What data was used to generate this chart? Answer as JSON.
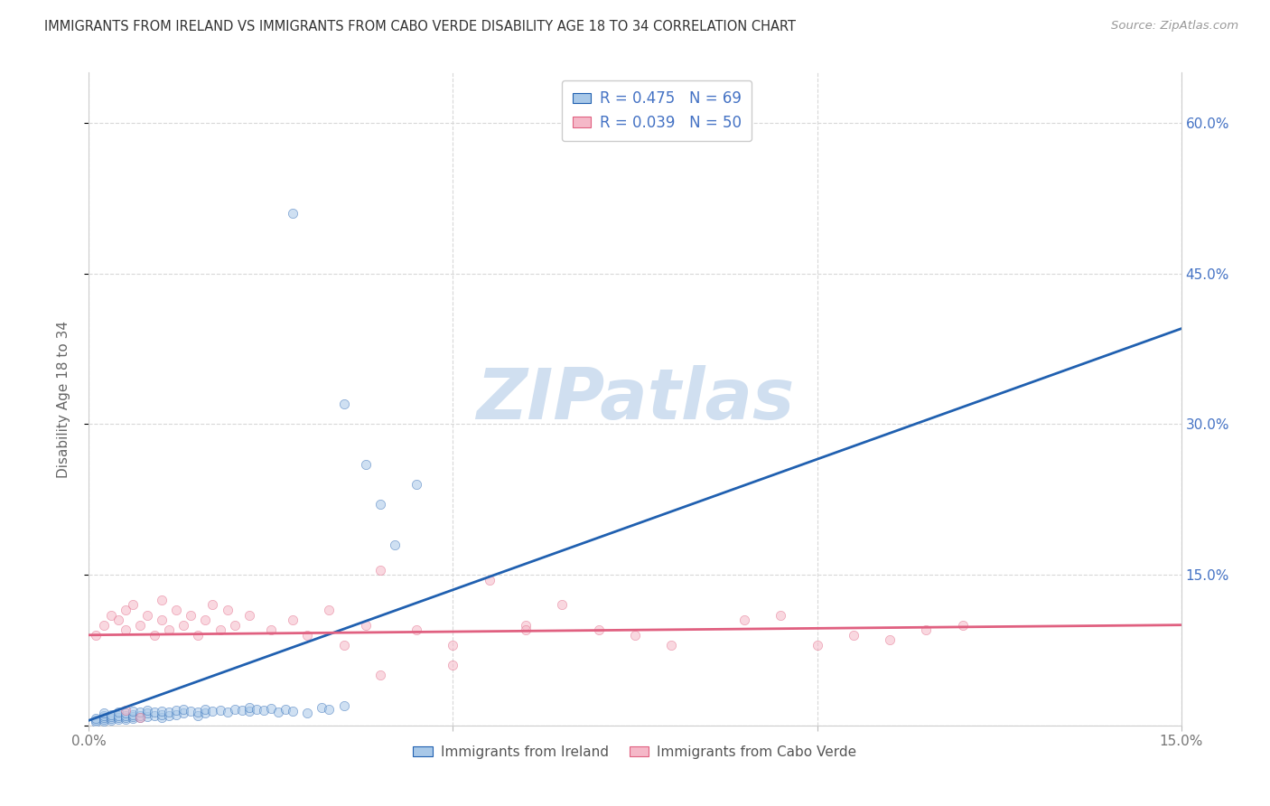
{
  "title": "IMMIGRANTS FROM IRELAND VS IMMIGRANTS FROM CABO VERDE DISABILITY AGE 18 TO 34 CORRELATION CHART",
  "source": "Source: ZipAtlas.com",
  "ylabel": "Disability Age 18 to 34",
  "xlim": [
    0.0,
    0.15
  ],
  "ylim": [
    0.0,
    0.65
  ],
  "xticks": [
    0.0,
    0.05,
    0.1,
    0.15
  ],
  "xticklabels": [
    "0.0%",
    "",
    "",
    "15.0%"
  ],
  "yticks": [
    0.0,
    0.15,
    0.3,
    0.45,
    0.6
  ],
  "right_yticklabels": [
    "",
    "15.0%",
    "30.0%",
    "45.0%",
    "60.0%"
  ],
  "legend_ireland_label": "R = 0.475   N = 69",
  "legend_caboverde_label": "R = 0.039   N = 50",
  "ireland_color": "#a8c8e8",
  "caboverde_color": "#f5b8c8",
  "ireland_line_color": "#2060b0",
  "caboverde_line_color": "#e06080",
  "right_tick_color": "#4472c4",
  "watermark_text": "ZIPatlas",
  "watermark_color": "#d0dff0",
  "background_color": "#ffffff",
  "grid_color": "#d8d8d8",
  "ireland_scatter_x": [
    0.001,
    0.001,
    0.001,
    0.002,
    0.002,
    0.002,
    0.002,
    0.002,
    0.003,
    0.003,
    0.003,
    0.003,
    0.004,
    0.004,
    0.004,
    0.004,
    0.005,
    0.005,
    0.005,
    0.005,
    0.006,
    0.006,
    0.006,
    0.006,
    0.007,
    0.007,
    0.007,
    0.008,
    0.008,
    0.008,
    0.009,
    0.009,
    0.01,
    0.01,
    0.01,
    0.011,
    0.011,
    0.012,
    0.012,
    0.013,
    0.013,
    0.014,
    0.015,
    0.015,
    0.016,
    0.016,
    0.017,
    0.018,
    0.019,
    0.02,
    0.021,
    0.022,
    0.022,
    0.023,
    0.024,
    0.025,
    0.026,
    0.027,
    0.028,
    0.03,
    0.032,
    0.033,
    0.035,
    0.038,
    0.04,
    0.042,
    0.045,
    0.035,
    0.028
  ],
  "ireland_scatter_y": [
    0.003,
    0.005,
    0.007,
    0.004,
    0.006,
    0.008,
    0.01,
    0.012,
    0.005,
    0.007,
    0.009,
    0.011,
    0.006,
    0.008,
    0.01,
    0.013,
    0.006,
    0.008,
    0.01,
    0.012,
    0.007,
    0.009,
    0.011,
    0.014,
    0.008,
    0.01,
    0.013,
    0.009,
    0.012,
    0.015,
    0.01,
    0.013,
    0.008,
    0.011,
    0.014,
    0.01,
    0.013,
    0.011,
    0.015,
    0.012,
    0.016,
    0.014,
    0.01,
    0.013,
    0.012,
    0.016,
    0.014,
    0.015,
    0.013,
    0.016,
    0.015,
    0.014,
    0.018,
    0.016,
    0.015,
    0.017,
    0.013,
    0.016,
    0.014,
    0.012,
    0.018,
    0.016,
    0.02,
    0.26,
    0.22,
    0.18,
    0.24,
    0.32,
    0.51
  ],
  "caboverde_scatter_x": [
    0.001,
    0.002,
    0.003,
    0.004,
    0.005,
    0.005,
    0.006,
    0.007,
    0.008,
    0.009,
    0.01,
    0.01,
    0.011,
    0.012,
    0.013,
    0.014,
    0.015,
    0.016,
    0.017,
    0.018,
    0.019,
    0.02,
    0.022,
    0.025,
    0.028,
    0.03,
    0.033,
    0.038,
    0.04,
    0.045,
    0.05,
    0.055,
    0.06,
    0.065,
    0.07,
    0.075,
    0.08,
    0.09,
    0.095,
    0.1,
    0.105,
    0.11,
    0.115,
    0.12,
    0.05,
    0.06,
    0.005,
    0.007,
    0.04,
    0.035
  ],
  "caboverde_scatter_y": [
    0.09,
    0.1,
    0.11,
    0.105,
    0.095,
    0.115,
    0.12,
    0.1,
    0.11,
    0.09,
    0.105,
    0.125,
    0.095,
    0.115,
    0.1,
    0.11,
    0.09,
    0.105,
    0.12,
    0.095,
    0.115,
    0.1,
    0.11,
    0.095,
    0.105,
    0.09,
    0.115,
    0.1,
    0.155,
    0.095,
    0.06,
    0.145,
    0.1,
    0.12,
    0.095,
    0.09,
    0.08,
    0.105,
    0.11,
    0.08,
    0.09,
    0.085,
    0.095,
    0.1,
    0.08,
    0.095,
    0.015,
    0.008,
    0.05,
    0.08
  ],
  "ireland_trend_x": [
    0.0,
    0.15
  ],
  "ireland_trend_y": [
    0.005,
    0.395
  ],
  "caboverde_trend_x": [
    0.0,
    0.15
  ],
  "caboverde_trend_y": [
    0.09,
    0.1
  ],
  "marker_size": 55,
  "marker_alpha": 0.55,
  "legend_bottom_ireland": "Immigrants from Ireland",
  "legend_bottom_caboverde": "Immigrants from Cabo Verde"
}
